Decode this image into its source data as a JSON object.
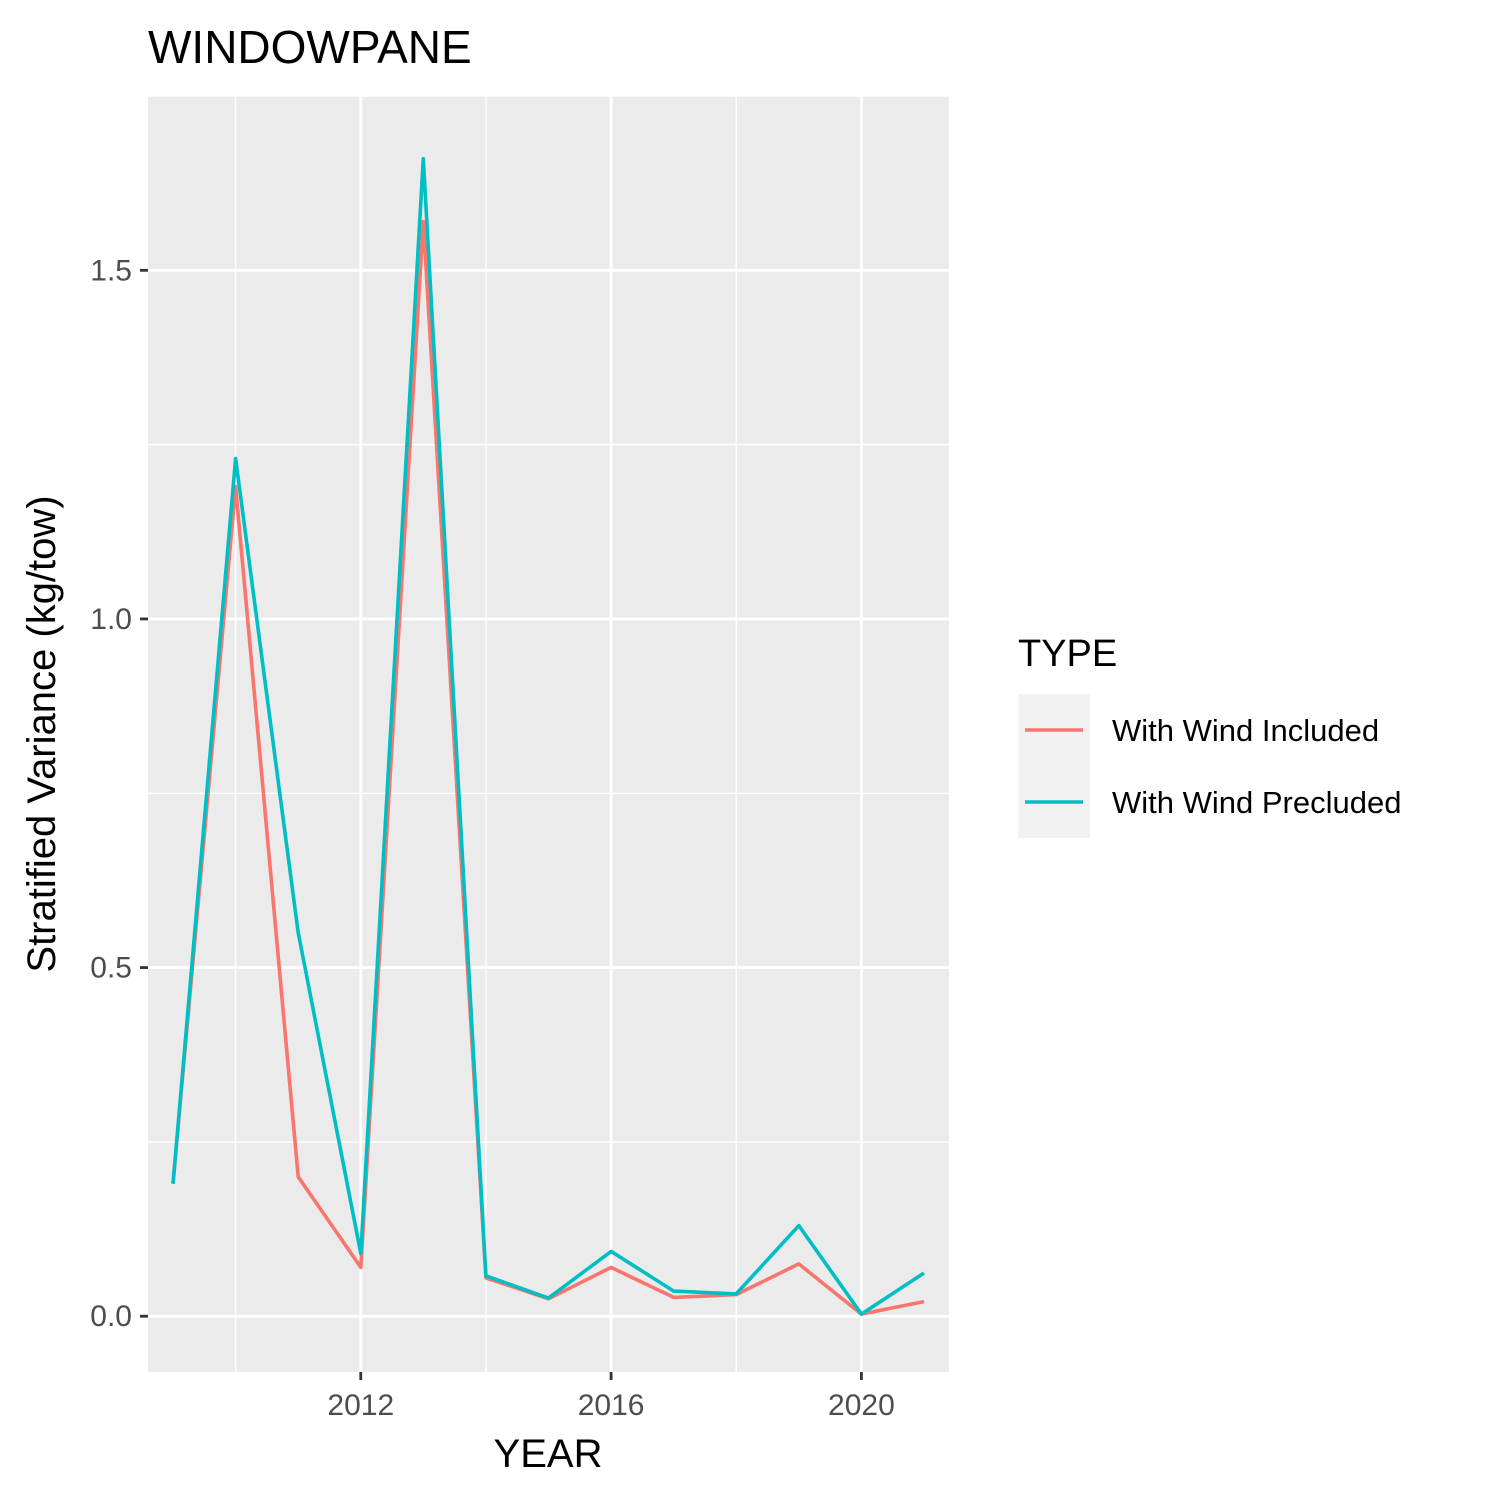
{
  "chart_data": {
    "type": "line",
    "title": "WINDOWPANE",
    "xlabel": "YEAR",
    "ylabel": "Stratified Variance (kg/tow)",
    "x": [
      2009,
      2010,
      2011,
      2012,
      2013,
      2014,
      2015,
      2016,
      2017,
      2018,
      2019,
      2020,
      2021
    ],
    "series": [
      {
        "name": "With Wind Included",
        "color": "#F8766D",
        "values": [
          0.19,
          1.19,
          0.2,
          0.07,
          1.57,
          0.055,
          0.025,
          0.07,
          0.027,
          0.031,
          0.075,
          0.003,
          0.021
        ]
      },
      {
        "name": "With Wind Precluded",
        "color": "#00BFC4",
        "values": [
          0.19,
          1.23,
          0.55,
          0.09,
          1.66,
          0.058,
          0.026,
          0.093,
          0.036,
          0.032,
          0.13,
          0.003,
          0.062
        ]
      }
    ],
    "xlim": [
      2008.6,
      2021.4
    ],
    "ylim": [
      -0.08,
      1.75
    ],
    "x_ticks": [
      "2012",
      "2016",
      "2020"
    ],
    "y_ticks": [
      "0.0",
      "0.5",
      "1.0",
      "1.5"
    ],
    "legend": {
      "title": "TYPE",
      "position": "right"
    },
    "grid": true,
    "panel_background": "#EBEBEB",
    "grid_color": "#FFFFFF"
  }
}
